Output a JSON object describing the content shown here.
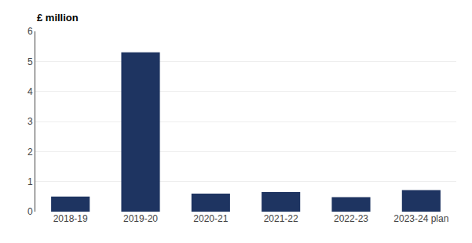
{
  "chart_data": {
    "type": "bar",
    "ylabel": "£ million",
    "categories": [
      "2018-19",
      "2019-20",
      "2020-21",
      "2021-22",
      "2022-23",
      "2023-24 plan"
    ],
    "values": [
      0.5,
      5.3,
      0.6,
      0.65,
      0.48,
      0.72
    ],
    "color": "#1e3461",
    "ylim": [
      0,
      6
    ],
    "yticks": [
      0,
      1,
      2,
      3,
      4,
      5,
      6
    ],
    "grid": true
  }
}
